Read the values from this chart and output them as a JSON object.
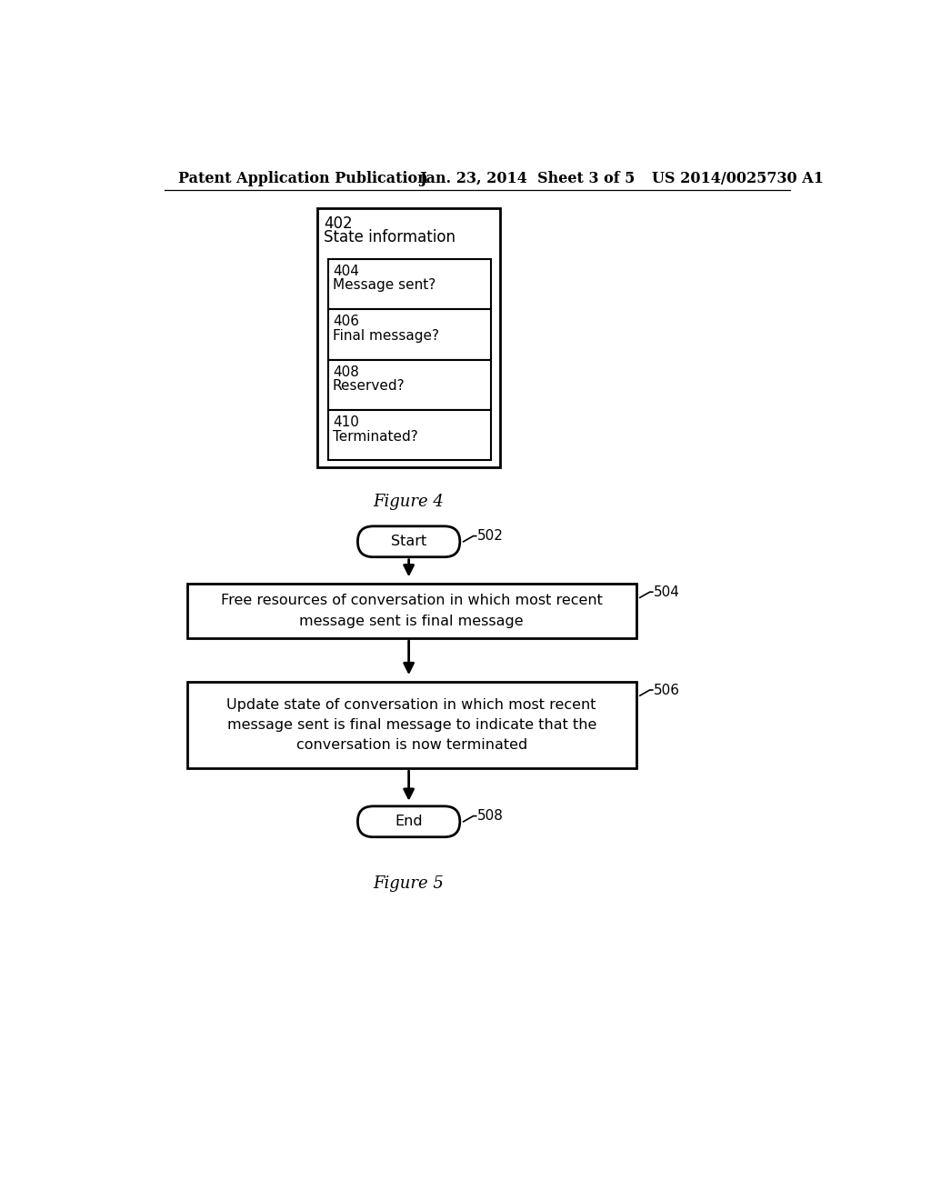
{
  "bg_color": "#ffffff",
  "header_left": "Patent Application Publication",
  "header_center": "Jan. 23, 2014  Sheet 3 of 5",
  "header_right": "US 2014/0025730 A1",
  "fig4_caption": "Figure 4",
  "fig5_caption": "Figure 5",
  "fig4_outer_label": "402",
  "fig4_outer_text": "State information",
  "fig4_inner_boxes": [
    {
      "label": "404",
      "text": "Message sent?"
    },
    {
      "label": "406",
      "text": "Final message?"
    },
    {
      "label": "408",
      "text": "Reserved?"
    },
    {
      "label": "410",
      "text": "Terminated?"
    }
  ],
  "start_label": "Start",
  "start_ref": "502",
  "box1_text": "Free resources of conversation in which most recent\nmessage sent is final message",
  "box1_ref": "504",
  "box2_text": "Update state of conversation in which most recent\nmessage sent is final message to indicate that the\nconversation is now terminated",
  "box2_ref": "506",
  "end_label": "End",
  "end_ref": "508",
  "font_size_header": 11.5,
  "font_size_outer_label": 12,
  "font_size_inner_label": 11,
  "font_size_caption": 13,
  "font_size_box_text": 11.5,
  "font_size_ref": 11
}
